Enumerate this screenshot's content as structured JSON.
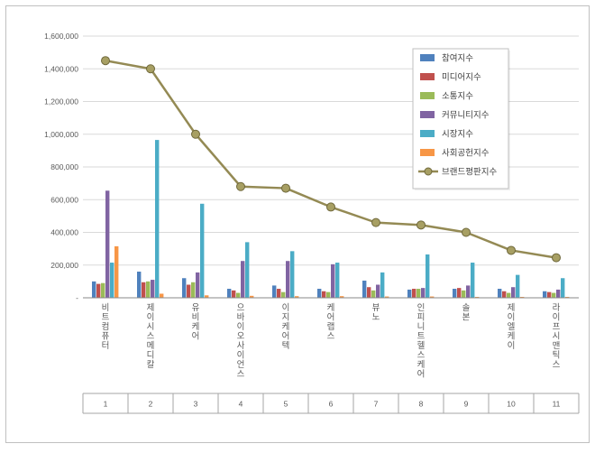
{
  "chart_data": {
    "type": "bar",
    "title": "",
    "categories": [
      "비트컴퓨터",
      "제이시스메디칼",
      "유비케어",
      "으바이오사이언스",
      "이지케어텍",
      "케어랩스",
      "뷰노",
      "인피니트헬스케어",
      "솔본",
      "제이엘케이",
      "라이프시맨틱스"
    ],
    "category_index_labels": [
      "1",
      "2",
      "3",
      "4",
      "5",
      "6",
      "7",
      "8",
      "9",
      "10",
      "11"
    ],
    "series": [
      {
        "name": "참여지수",
        "color": "#4F81BD",
        "values": [
          100000,
          160000,
          120000,
          55000,
          75000,
          55000,
          105000,
          50000,
          55000,
          55000,
          40000
        ]
      },
      {
        "name": "미디어지수",
        "color": "#C0504D",
        "values": [
          85000,
          95000,
          80000,
          45000,
          55000,
          40000,
          65000,
          55000,
          60000,
          40000,
          35000
        ]
      },
      {
        "name": "소통지수",
        "color": "#9BBB59",
        "values": [
          90000,
          100000,
          95000,
          30000,
          35000,
          35000,
          45000,
          55000,
          45000,
          30000,
          30000
        ]
      },
      {
        "name": "커뮤니티지수",
        "color": "#8064A2",
        "values": [
          655000,
          110000,
          155000,
          225000,
          225000,
          205000,
          80000,
          60000,
          75000,
          65000,
          50000
        ]
      },
      {
        "name": "시장지수",
        "color": "#4BACC6",
        "values": [
          215000,
          965000,
          575000,
          340000,
          285000,
          215000,
          155000,
          265000,
          215000,
          140000,
          120000
        ]
      },
      {
        "name": "사회공헌지수",
        "color": "#F79646",
        "values": [
          315000,
          25000,
          15000,
          12000,
          10000,
          10000,
          8000,
          8000,
          5000,
          5000,
          5000
        ]
      }
    ],
    "line_series": {
      "name": "브랜드평판지수",
      "color": "#948A54",
      "marker_fill": "#A79F63",
      "marker_stroke": "#6F683B",
      "values": [
        1450000,
        1400000,
        1000000,
        680000,
        670000,
        555000,
        460000,
        445000,
        400000,
        290000,
        245000
      ]
    },
    "ylim": [
      0,
      1600000
    ],
    "ytick_interval": 200000,
    "ytick_labels": [
      "-",
      "200,000",
      "400,000",
      "600,000",
      "800,000",
      "1,000,000",
      "1,200,000",
      "1,400,000",
      "1,600,000"
    ],
    "grid": true,
    "legend_position": "top-right",
    "legend": [
      "참여지수",
      "미디어지수",
      "소통지수",
      "커뮤니티지수",
      "시장지수",
      "사회공헌지수",
      "브랜드평판지수"
    ]
  },
  "colors": {
    "background": "#FFFFFF",
    "frame_border": "#C0C0C0",
    "grid": "#D9D9D9",
    "axis_line": "#898989",
    "minor_line": "#A6A6A6",
    "axis_text": "#595959",
    "legend_text": "#404040",
    "legend_border": "#BFBFBF"
  }
}
